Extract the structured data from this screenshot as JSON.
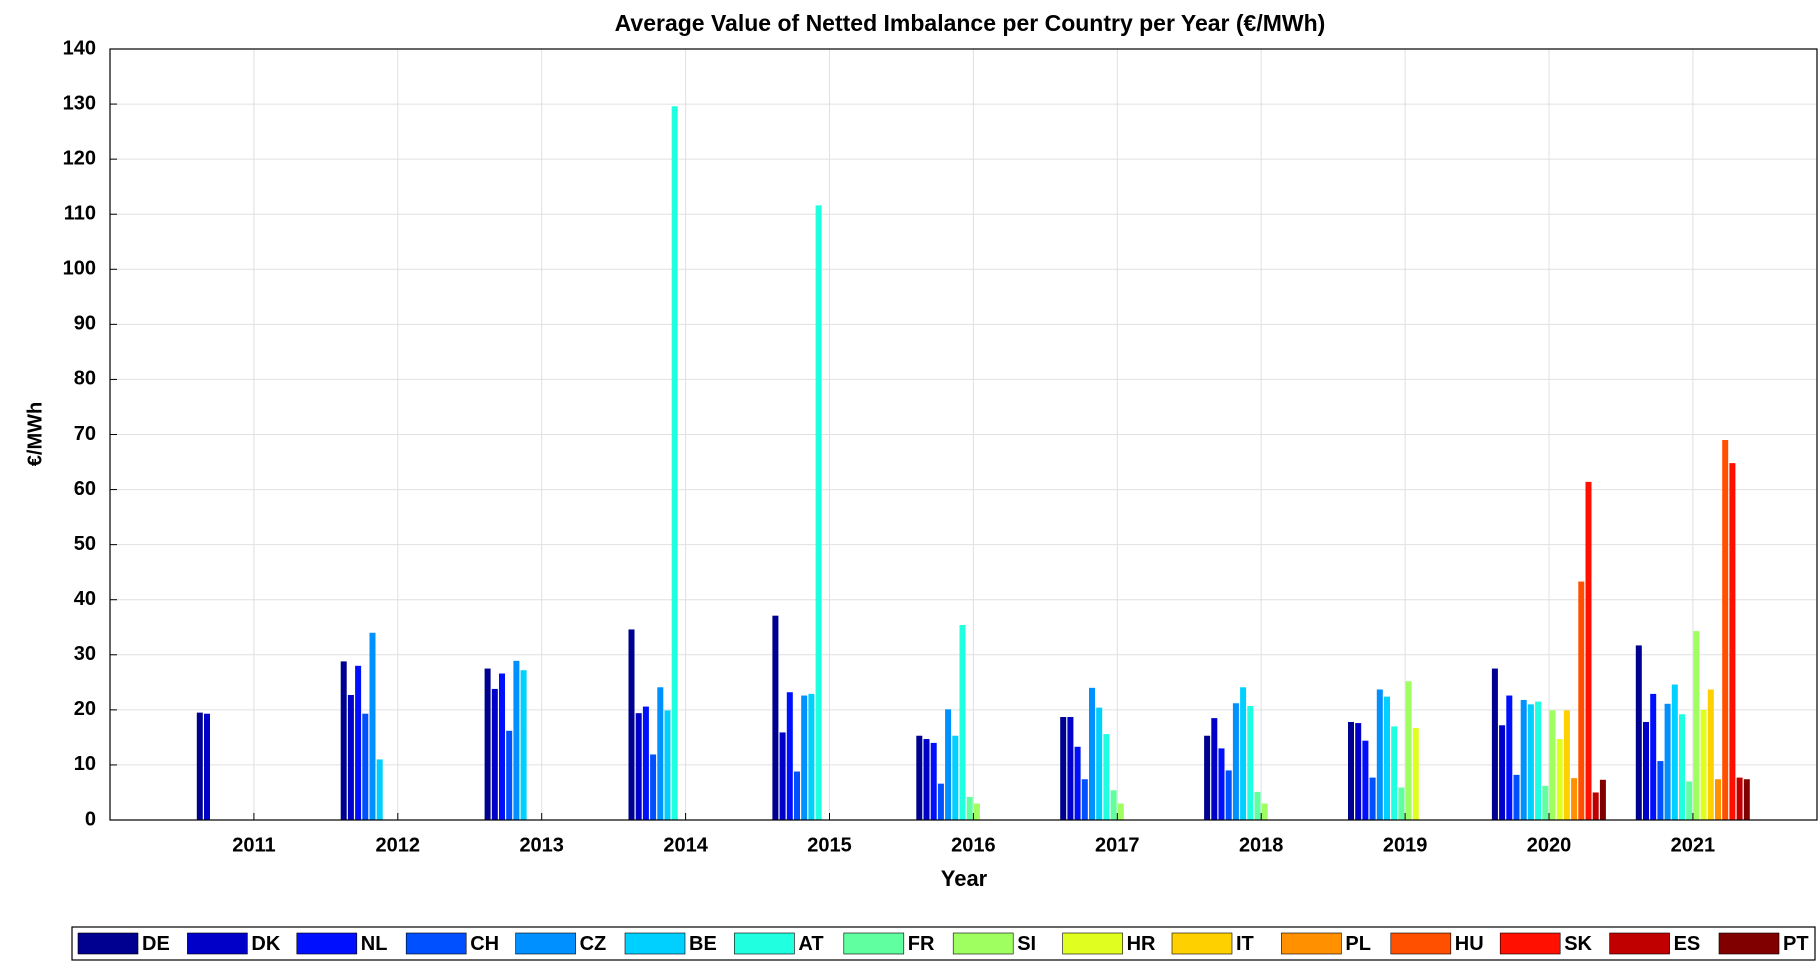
{
  "chart_data": {
    "type": "bar",
    "title": "Average Value of Netted Imbalance per Country per Year (€/MWh)",
    "x_label": "Year",
    "y_label": "€/MWh",
    "categories": [
      "2011",
      "2012",
      "2013",
      "2014",
      "2015",
      "2016",
      "2017",
      "2018",
      "2019",
      "2020",
      "2021"
    ],
    "ylim": [
      0,
      140
    ],
    "yticks": [
      0,
      10,
      20,
      30,
      40,
      50,
      60,
      70,
      80,
      90,
      100,
      110,
      120,
      130,
      140
    ],
    "grid": true,
    "series": [
      {
        "name": "DE",
        "color": "#000090",
        "values": [
          19.5,
          28.8,
          27.5,
          34.6,
          37.1,
          15.3,
          18.7,
          15.3,
          17.8,
          27.5,
          31.7
        ]
      },
      {
        "name": "DK",
        "color": "#0000c8",
        "values": [
          19.3,
          22.7,
          23.8,
          19.4,
          15.9,
          14.7,
          18.7,
          18.5,
          17.6,
          17.2,
          17.8
        ]
      },
      {
        "name": "NL",
        "color": "#0010ff",
        "values": [
          null,
          28,
          26.6,
          20.6,
          23.2,
          14,
          13.3,
          13,
          14.4,
          22.6,
          22.9
        ]
      },
      {
        "name": "CH",
        "color": "#0050ff",
        "values": [
          null,
          19.3,
          16.2,
          11.9,
          8.8,
          6.6,
          7.4,
          9,
          7.7,
          8.2,
          10.7
        ]
      },
      {
        "name": "CZ",
        "color": "#0090ff",
        "values": [
          null,
          34,
          28.9,
          24.1,
          22.6,
          20.1,
          24,
          21.2,
          23.7,
          21.8,
          21.1
        ]
      },
      {
        "name": "BE",
        "color": "#00d0ff",
        "values": [
          null,
          11,
          27.2,
          19.9,
          22.9,
          15.3,
          20.4,
          24.1,
          22.4,
          21,
          24.6
        ]
      },
      {
        "name": "AT",
        "color": "#20ffdf",
        "values": [
          null,
          null,
          null,
          129.6,
          111.6,
          35.4,
          15.6,
          20.7,
          17,
          21.5,
          19.2
        ]
      },
      {
        "name": "FR",
        "color": "#60ff9f",
        "values": [
          null,
          null,
          null,
          null,
          null,
          4.2,
          5.4,
          5.1,
          5.9,
          6.2,
          7
        ]
      },
      {
        "name": "SI",
        "color": "#a0ff60",
        "values": [
          null,
          null,
          null,
          null,
          null,
          3,
          3,
          3,
          25.2,
          19.9,
          34.3
        ]
      },
      {
        "name": "HR",
        "color": "#e0ff20",
        "values": [
          null,
          null,
          null,
          null,
          null,
          null,
          null,
          null,
          16.7,
          14.7,
          20
        ]
      },
      {
        "name": "IT",
        "color": "#ffd000",
        "values": [
          null,
          null,
          null,
          null,
          null,
          null,
          null,
          null,
          null,
          19.9,
          23.7
        ]
      },
      {
        "name": "PL",
        "color": "#ff9000",
        "values": [
          null,
          null,
          null,
          null,
          null,
          null,
          null,
          null,
          null,
          7.6,
          7.4
        ]
      },
      {
        "name": "HU",
        "color": "#ff5000",
        "values": [
          null,
          null,
          null,
          null,
          null,
          null,
          null,
          null,
          null,
          43.3,
          69
        ]
      },
      {
        "name": "SK",
        "color": "#ff1000",
        "values": [
          null,
          null,
          null,
          null,
          null,
          null,
          null,
          null,
          null,
          61.4,
          64.8
        ]
      },
      {
        "name": "ES",
        "color": "#c00000",
        "values": [
          null,
          null,
          null,
          null,
          null,
          null,
          null,
          null,
          null,
          5,
          7.7
        ]
      },
      {
        "name": "PT",
        "color": "#800000",
        "values": [
          null,
          null,
          null,
          null,
          null,
          null,
          null,
          null,
          null,
          7.3,
          7.4
        ]
      }
    ]
  }
}
